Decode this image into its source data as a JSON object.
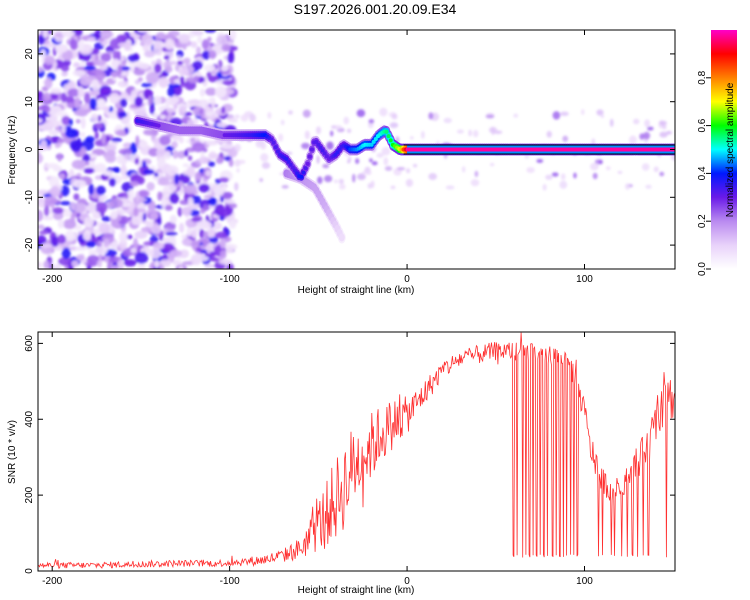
{
  "title": "S197.2026.001.20.09.E34",
  "chart_data": [
    {
      "type": "heatmap",
      "xlabel": "Height of straight line (km)",
      "ylabel": "Frequency (Hz)",
      "xlim": [
        -208,
        151
      ],
      "ylim": [
        -25,
        25
      ],
      "xticks": [
        -200,
        -100,
        0,
        100
      ],
      "yticks": [
        -20,
        -10,
        0,
        10,
        20
      ],
      "colorbar": {
        "label": "Normalized spectral amplitude",
        "range": [
          0.0,
          1.0
        ],
        "ticks": [
          "0.0",
          "0.2",
          "0.4",
          "0.6",
          "0.8"
        ],
        "tick_values": [
          0.0,
          0.2,
          0.4,
          0.6,
          0.8
        ],
        "colors": [
          "#ffffff",
          "#e8d2fa",
          "#b98af0",
          "#6a1ae8",
          "#0018ff",
          "#00ffff",
          "#00ff00",
          "#ffff00",
          "#ff8000",
          "#ff0000",
          "#ff00c8"
        ]
      },
      "ridge": {
        "x": [
          -152,
          -140,
          -128,
          -116,
          -104,
          -96,
          -88,
          -80,
          -76,
          -72,
          -68,
          -64,
          -60,
          -56,
          -52,
          -48,
          -44,
          -40,
          -36,
          -32,
          -28,
          -24,
          -20,
          -16,
          -12,
          -8,
          -4,
          0,
          10,
          50,
          100,
          151
        ],
        "y": [
          6,
          5,
          4,
          4,
          3,
          3,
          3,
          3,
          2,
          -1,
          -2,
          -4,
          -6,
          -3,
          2,
          0,
          -2,
          -1,
          1,
          0,
          0,
          1,
          1,
          3,
          4,
          1,
          0,
          0,
          0,
          0,
          0,
          0
        ],
        "amplitude": [
          0.35,
          0.3,
          0.28,
          0.28,
          0.3,
          0.32,
          0.35,
          0.4,
          0.32,
          0.34,
          0.36,
          0.32,
          0.4,
          0.3,
          0.32,
          0.34,
          0.3,
          0.36,
          0.34,
          0.42,
          0.45,
          0.5,
          0.48,
          0.5,
          0.55,
          0.6,
          0.7,
          0.98,
          0.98,
          0.98,
          0.98,
          0.98
        ]
      },
      "spur": {
        "x": [
          -68,
          -60,
          -52,
          -46,
          -40,
          -36
        ],
        "y": [
          -5,
          -6,
          -8,
          -12,
          -16,
          -19
        ],
        "amplitude": [
          0.25,
          0.22,
          0.2,
          0.18,
          0.12,
          0.08
        ]
      }
    },
    {
      "type": "line",
      "xlabel": "Height of straight line (km)",
      "ylabel": "SNR (10 * v/v)",
      "xlim": [
        -208,
        151
      ],
      "ylim": [
        0,
        630
      ],
      "xticks": [
        -200,
        -100,
        0,
        100
      ],
      "yticks": [
        0,
        200,
        400,
        600
      ],
      "series": [
        {
          "name": "SNR",
          "color": "#ff3030",
          "x": [
            -208,
            -180,
            -150,
            -130,
            -110,
            -100,
            -90,
            -80,
            -70,
            -60,
            -50,
            -40,
            -35,
            -30,
            -20,
            -15,
            -10,
            -5,
            0,
            5,
            10,
            15,
            20,
            30,
            40,
            50,
            60,
            70,
            80,
            90,
            95,
            100,
            103,
            106,
            110,
            115,
            120,
            125,
            130,
            135,
            140,
            145,
            151
          ],
          "y": [
            15,
            15,
            18,
            20,
            20,
            22,
            25,
            30,
            40,
            60,
            120,
            190,
            230,
            280,
            330,
            360,
            380,
            400,
            410,
            440,
            470,
            500,
            530,
            560,
            570,
            580,
            580,
            575,
            570,
            560,
            500,
            420,
            330,
            290,
            240,
            210,
            220,
            250,
            290,
            320,
            380,
            470,
            450
          ],
          "noise": [
            8,
            8,
            9,
            9,
            9,
            10,
            12,
            14,
            18,
            30,
            70,
            110,
            120,
            110,
            90,
            80,
            70,
            60,
            50,
            40,
            35,
            30,
            25,
            25,
            25,
            25,
            25,
            25,
            25,
            25,
            30,
            35,
            40,
            40,
            35,
            30,
            30,
            35,
            45,
            50,
            60,
            60,
            60
          ]
        }
      ],
      "dropouts_x": [
        60,
        62,
        65,
        67,
        69,
        71,
        73,
        75,
        77,
        79,
        82,
        84,
        86,
        88,
        90,
        92,
        94,
        96,
        108,
        110,
        115,
        117,
        121,
        124,
        127,
        130,
        133,
        136,
        146
      ]
    }
  ]
}
